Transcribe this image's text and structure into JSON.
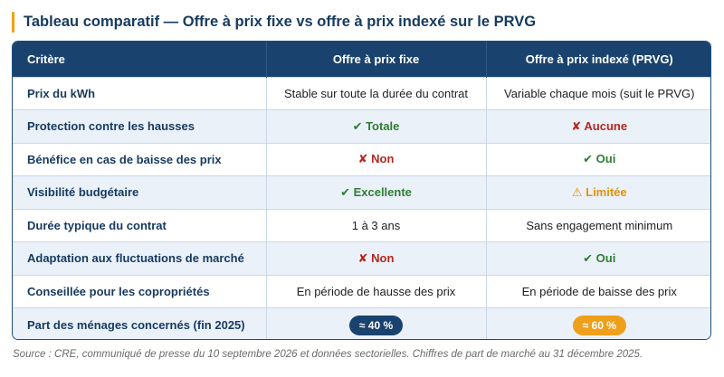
{
  "title": "Tableau comparatif — Offre à prix fixe vs offre à prix indexé sur le PRVG",
  "table": {
    "headers": [
      "Critère",
      "Offre à prix fixe",
      "Offre à prix indexé (PRVG)"
    ],
    "rows": [
      {
        "criterion": "Prix du kWh",
        "fixed": "Stable sur toute la durée du contrat",
        "indexed": "Variable chaque mois (suit le PRVG)"
      },
      {
        "criterion": "Protection contre les hausses",
        "fixed": "✔ Totale",
        "indexed": "✘ Aucune"
      },
      {
        "criterion": "Bénéfice en cas de baisse des prix",
        "fixed": "✘ Non",
        "indexed": "✔ Oui"
      },
      {
        "criterion": "Visibilité budgétaire",
        "fixed": "✔ Excellente",
        "indexed": "⚠ Limitée"
      },
      {
        "criterion": "Durée typique du contrat",
        "fixed": "1 à 3 ans",
        "indexed": "Sans engagement minimum"
      },
      {
        "criterion": "Adaptation aux fluctuations de marché",
        "fixed": "✘ Non",
        "indexed": "✔ Oui"
      },
      {
        "criterion": "Conseillée pour les copropriétés",
        "fixed": "En période de hausse des prix",
        "indexed": "En période de baisse des prix"
      },
      {
        "criterion": "Part des ménages concernés (fin 2025)",
        "fixed": "≈ 40 %",
        "indexed": "≈ 60 %"
      }
    ]
  },
  "colors": {
    "header": "#19436e",
    "good": "#2f7d32",
    "bad": "#b6281f",
    "warn": "#e0930d",
    "accent": "#f2a20c"
  },
  "source": "Source : CRE, communiqué de presse du 10 septembre 2026 et données sectorielles. Chiffres de part de marché au 31 décembre 2025."
}
